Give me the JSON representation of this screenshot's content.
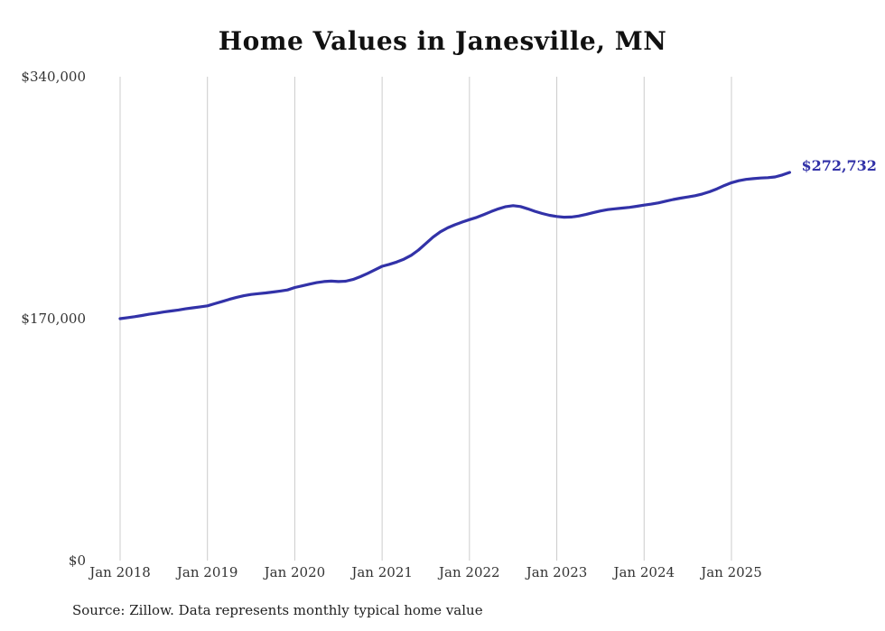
{
  "chart": {
    "title": "Home Values in Janesville, MN",
    "end_label": "$272,732",
    "source": "Source: Zillow. Data represents monthly typical home value"
  },
  "chart_data": {
    "type": "line",
    "title": "Home Values in Janesville, MN",
    "x": [
      "2018-01",
      "2018-02",
      "2018-03",
      "2018-04",
      "2018-05",
      "2018-06",
      "2018-07",
      "2018-08",
      "2018-09",
      "2018-10",
      "2018-11",
      "2018-12",
      "2019-01",
      "2019-02",
      "2019-03",
      "2019-04",
      "2019-05",
      "2019-06",
      "2019-07",
      "2019-08",
      "2019-09",
      "2019-10",
      "2019-11",
      "2019-12",
      "2020-01",
      "2020-02",
      "2020-03",
      "2020-04",
      "2020-05",
      "2020-06",
      "2020-07",
      "2020-08",
      "2020-09",
      "2020-10",
      "2020-11",
      "2020-12",
      "2021-01",
      "2021-02",
      "2021-03",
      "2021-04",
      "2021-05",
      "2021-06",
      "2021-07",
      "2021-08",
      "2021-09",
      "2021-10",
      "2021-11",
      "2021-12",
      "2022-01",
      "2022-02",
      "2022-03",
      "2022-04",
      "2022-05",
      "2022-06",
      "2022-07",
      "2022-08",
      "2022-09",
      "2022-10",
      "2022-11",
      "2022-12",
      "2023-01",
      "2023-02",
      "2023-03",
      "2023-04",
      "2023-05",
      "2023-06",
      "2023-07",
      "2023-08",
      "2023-09",
      "2023-10",
      "2023-11",
      "2023-12",
      "2024-01",
      "2024-02",
      "2024-03",
      "2024-04",
      "2024-05",
      "2024-06",
      "2024-07",
      "2024-08",
      "2024-09",
      "2024-10",
      "2024-11",
      "2024-12",
      "2025-01",
      "2025-02",
      "2025-03",
      "2025-04",
      "2025-05",
      "2025-06",
      "2025-07",
      "2025-08",
      "2025-09"
    ],
    "values": [
      170000,
      170700,
      171400,
      172200,
      173100,
      173900,
      174700,
      175400,
      176100,
      176900,
      177600,
      178300,
      179000,
      180500,
      182000,
      183600,
      185000,
      186100,
      187000,
      187600,
      188100,
      188700,
      189400,
      190200,
      191900,
      193000,
      194200,
      195300,
      196100,
      196400,
      196100,
      196300,
      197500,
      199500,
      201800,
      204300,
      206800,
      208200,
      209800,
      211800,
      214500,
      218200,
      222800,
      227300,
      231000,
      233800,
      236000,
      237900,
      239600,
      241200,
      243200,
      245300,
      247200,
      248700,
      249400,
      248800,
      247200,
      245400,
      243900,
      242600,
      241800,
      241300,
      241400,
      242100,
      243200,
      244500,
      245700,
      246600,
      247200,
      247700,
      248200,
      249000,
      249800,
      250500,
      251400,
      252600,
      253700,
      254700,
      255500,
      256400,
      257600,
      259200,
      261200,
      263500,
      265500,
      266900,
      267900,
      268400,
      268800,
      269100,
      269600,
      271000,
      272732
    ],
    "x_ticks": [
      "Jan 2018",
      "Jan 2019",
      "Jan 2020",
      "Jan 2021",
      "Jan 2022",
      "Jan 2023",
      "Jan 2024",
      "Jan 2025"
    ],
    "y_ticks": [
      {
        "label": "$0",
        "value": 0
      },
      {
        "label": "$170,000",
        "value": 170000
      },
      {
        "label": "$340,000",
        "value": 340000
      }
    ],
    "ylim": [
      0,
      340000
    ],
    "grid": "vertical-only",
    "legend": "none",
    "line_color": "#3232a8",
    "gridline_color": "#cccccc",
    "annotation": {
      "text": "$272,732",
      "value": 272732,
      "position": "line-end"
    }
  }
}
